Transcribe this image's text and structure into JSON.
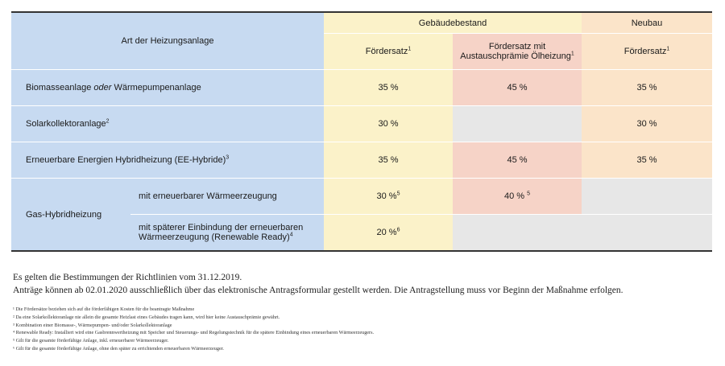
{
  "table": {
    "header": {
      "art_label": "Art der Heizungsanlage",
      "bestand_label": "Gebäudebestand",
      "neubau_label": "Neubau",
      "foerdersatz": "Fördersatz",
      "foerdersatz_fn": "1",
      "foerdersatz_mit_line1": "Fördersatz mit",
      "foerdersatz_mit_line2": "Austauschprämie Ölheizung",
      "foerdersatz_mit_fn": "1",
      "neubau_foerdersatz": "Fördersatz",
      "neubau_foerdersatz_fn": "1"
    },
    "rows": [
      {
        "label_part1": "Biomasseanlage ",
        "label_italic": "oder",
        "label_part2": " Wärmepumpenanlage",
        "bestand": "35 %",
        "austausch": "45 %",
        "neubau": "35 %"
      },
      {
        "label": "Solarkollektoranlage",
        "fn": "2",
        "bestand": "30 %",
        "austausch": "",
        "neubau": "30 %"
      },
      {
        "label": "Erneuerbare Energien Hybridheizung (EE-Hybride)",
        "fn": "3",
        "bestand": "35 %",
        "austausch": "45 %",
        "neubau": "35 %"
      }
    ],
    "gas": {
      "label": "Gas-Hybridheizung",
      "sub1_label": "mit erneuerbarer Wärmeerzeugung",
      "sub1_bestand": "30 %",
      "sub1_bestand_fn": "5",
      "sub1_austausch": "40 %",
      "sub1_austausch_fn": "5",
      "sub2_line1": "mit späterer Einbindung der erneuerbaren",
      "sub2_line2": "Wärmeerzeugung (Renewable Ready)",
      "sub2_fn": "4",
      "sub2_bestand": "20 %",
      "sub2_bestand_fn": "6"
    }
  },
  "notes": {
    "line1": "Es gelten die Bestimmungen der Richtlinien vom 31.12.2019.",
    "line2": "Anträge können ab 02.01.2020 ausschließlich über das elektronische Antragsformular gestellt werden. Die Antragstellung muss vor Beginn der Maßnahme erfolgen."
  },
  "footnotes": [
    "¹ Die Fördersätze beziehen sich auf die förderfähigen Kosten für die beantragte Maßnahme",
    "² Da eine Solarkollektoranlage nie allein die gesamte Heizlast eines Gebäudes tragen kann, wird hier keine Austauschprämie gewährt.",
    "³ Kombination einer Biomasse-, Wärmepumpen- und/oder Solarkollektoranlage",
    "⁴ Renewable Ready: Installiert wird eine Gasbrennwertheizung mit Speicher und Steuerungs- und Regelungstechnik für die spätere Einbindung eines erneuerbaren Wärmeerzeugers.",
    "⁵ Gilt für die gesamte förderfähige Anlage, inkl. erneuerbarer Wärmeerzeuger.",
    "⁶ Gilt für die gesamte förderfähige Anlage, ohne den später zu errichtenden erneuerbaren Wärmeerzeuger."
  ],
  "colors": {
    "blue": "#c7daf1",
    "yellow": "#fbf2c9",
    "pink": "#f6d3c7",
    "peach": "#fbe4c9",
    "grey": "#e7e7e7"
  }
}
